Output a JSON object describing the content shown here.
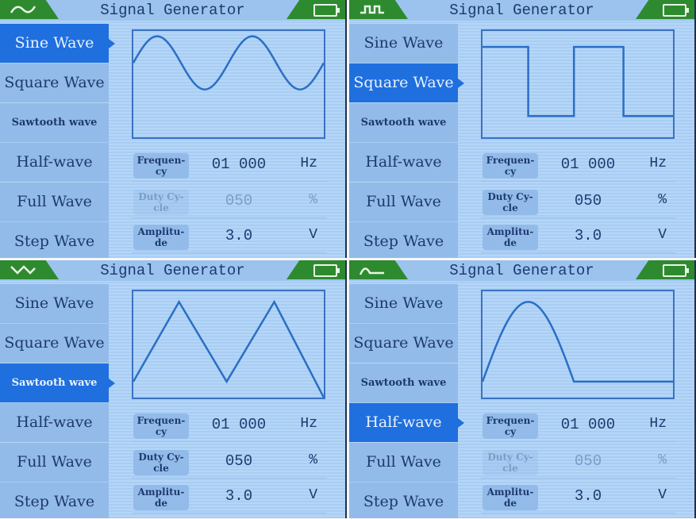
{
  "colors": {
    "header_tab": "#2e8a2e",
    "selected_item": "#1f6fde",
    "wave_line": "#2a6fc4",
    "text": "#1d3a6e"
  },
  "panels": [
    {
      "header_icon": "sine-wave-icon",
      "waveform": "sine",
      "title": "Signal Generator",
      "menu": [
        "Sine Wave",
        "Square Wave",
        "Sawtooth wave",
        "Half-wave",
        "Full Wave",
        "Step Wave"
      ],
      "selected": 0,
      "params": [
        {
          "label": "Frequen-\ncy",
          "value": "01 000",
          "unit": "Hz",
          "enabled": true
        },
        {
          "label": "Duty Cy-\ncle",
          "value": "050",
          "unit": "%",
          "enabled": false
        },
        {
          "label": "Amplitu-\nde",
          "value": "3.0",
          "unit": "V",
          "enabled": true
        }
      ]
    },
    {
      "header_icon": "square-wave-icon",
      "waveform": "square",
      "title": "Signal Generator",
      "menu": [
        "Sine Wave",
        "Square Wave",
        "Sawtooth wave",
        "Half-wave",
        "Full Wave",
        "Step Wave"
      ],
      "selected": 1,
      "params": [
        {
          "label": "Frequen-\ncy",
          "value": "01 000",
          "unit": "Hz",
          "enabled": true
        },
        {
          "label": "Duty Cy-\ncle",
          "value": "050",
          "unit": "%",
          "enabled": true
        },
        {
          "label": "Amplitu-\nde",
          "value": "3.0",
          "unit": "V",
          "enabled": true
        }
      ]
    },
    {
      "header_icon": "sawtooth-wave-icon",
      "waveform": "sawtooth",
      "title": "Signal Generator",
      "menu": [
        "Sine Wave",
        "Square Wave",
        "Sawtooth wave",
        "Half-wave",
        "Full Wave",
        "Step Wave"
      ],
      "selected": 2,
      "params": [
        {
          "label": "Frequen-\ncy",
          "value": "01 000",
          "unit": "Hz",
          "enabled": true
        },
        {
          "label": "Duty Cy-\ncle",
          "value": "050",
          "unit": "%",
          "enabled": true
        },
        {
          "label": "Amplitu-\nde",
          "value": "3.0",
          "unit": "V",
          "enabled": true
        }
      ]
    },
    {
      "header_icon": "half-wave-icon",
      "waveform": "half-wave",
      "title": "Signal Generator",
      "menu": [
        "Sine Wave",
        "Square Wave",
        "Sawtooth wave",
        "Half-wave",
        "Full Wave",
        "Step Wave"
      ],
      "selected": 3,
      "params": [
        {
          "label": "Frequen-\ncy",
          "value": "01 000",
          "unit": "Hz",
          "enabled": true
        },
        {
          "label": "Duty Cy-\ncle",
          "value": "050",
          "unit": "%",
          "enabled": false
        },
        {
          "label": "Amplitu-\nde",
          "value": "3.0",
          "unit": "V",
          "enabled": true
        }
      ]
    }
  ]
}
